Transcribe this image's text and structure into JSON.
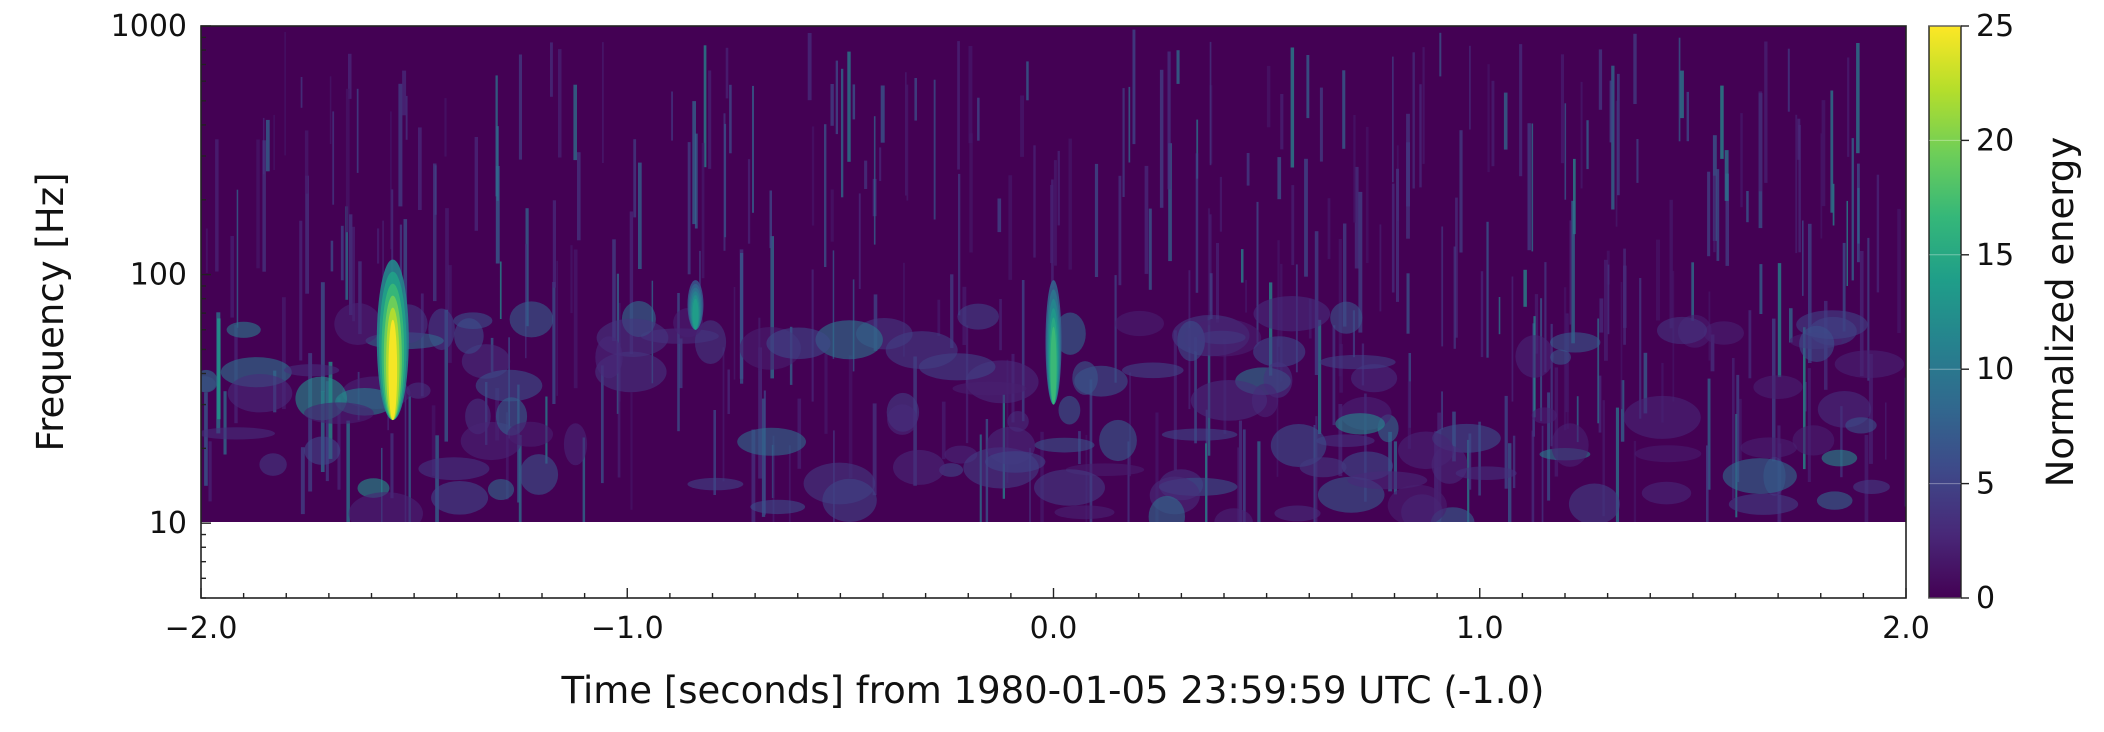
{
  "chart_data": {
    "type": "heatmap",
    "title": "",
    "xlabel": "Time [seconds] from 1980-01-05 23:59:59 UTC (-1.0)",
    "ylabel": "Frequency [Hz]",
    "xlim": [
      -2.0,
      2.0
    ],
    "ylim": [
      5,
      1000
    ],
    "yscale": "log",
    "data_frequency_range": [
      10,
      1000
    ],
    "x_ticks": [
      -2.0,
      -1.0,
      0.0,
      1.0,
      2.0
    ],
    "x_tick_labels": [
      "−2.0",
      "−1.0",
      "0.0",
      "1.0",
      "2.0"
    ],
    "y_ticks": [
      10,
      100,
      1000
    ],
    "y_tick_labels": [
      "10",
      "100",
      "1000"
    ],
    "colorbar": {
      "label": "Normalized energy",
      "range": [
        0,
        25
      ],
      "ticks": [
        0,
        5,
        10,
        15,
        20,
        25
      ],
      "tick_labels": [
        "0",
        "5",
        "10",
        "15",
        "20",
        "25"
      ],
      "colormap": "viridis"
    },
    "grid": false,
    "events": [
      {
        "t": -1.55,
        "f_low": 26,
        "f_high": 115,
        "peak_energy": 25
      },
      {
        "t": 0.0,
        "f_low": 30,
        "f_high": 95,
        "peak_energy": 17
      },
      {
        "t": -0.84,
        "f_low": 60,
        "f_high": 95,
        "peak_energy": 14
      }
    ]
  },
  "colors": {
    "background": "#440154",
    "viridis": [
      "#440154",
      "#482878",
      "#3e4989",
      "#31688e",
      "#26828e",
      "#1f9e89",
      "#35b779",
      "#6ece58",
      "#b5de2b",
      "#fde725"
    ]
  }
}
